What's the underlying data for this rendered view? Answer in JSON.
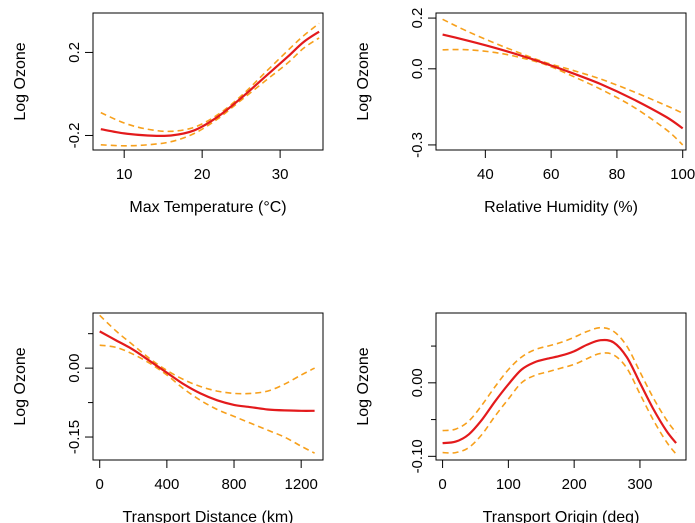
{
  "chart_data": [
    {
      "type": "line",
      "xlabel": "Max Temperature (°C)",
      "ylabel": "Log Ozone",
      "xlim": [
        6,
        35.5
      ],
      "ylim": [
        -0.27,
        0.39
      ],
      "xticks": [
        10,
        20,
        30
      ],
      "yticks": [
        -0.2,
        0.2
      ],
      "xtick_labels": [
        "10",
        "20",
        "30"
      ],
      "ytick_labels": [
        "-0.2",
        "0.2"
      ],
      "series": [
        {
          "role": "fit",
          "x": [
            7,
            10,
            13,
            16,
            19,
            22,
            25,
            28,
            31,
            33,
            35
          ],
          "y": [
            -0.17,
            -0.19,
            -0.2,
            -0.2,
            -0.175,
            -0.11,
            -0.02,
            0.08,
            0.18,
            0.25,
            0.3
          ]
        },
        {
          "role": "upper",
          "x": [
            7,
            10,
            13,
            16,
            19,
            22,
            25,
            28,
            31,
            33,
            35
          ],
          "y": [
            -0.09,
            -0.14,
            -0.17,
            -0.18,
            -0.16,
            -0.1,
            -0.01,
            0.1,
            0.21,
            0.28,
            0.34
          ]
        },
        {
          "role": "lower",
          "x": [
            7,
            10,
            13,
            16,
            19,
            22,
            25,
            28,
            31,
            33,
            35
          ],
          "y": [
            -0.245,
            -0.25,
            -0.245,
            -0.23,
            -0.19,
            -0.12,
            -0.03,
            0.06,
            0.15,
            0.22,
            0.27
          ]
        }
      ]
    },
    {
      "type": "line",
      "xlabel": "Relative Humidity (%)",
      "ylabel": "Log Ozone",
      "xlim": [
        25,
        101
      ],
      "ylim": [
        -0.32,
        0.22
      ],
      "xticks": [
        40,
        60,
        80,
        100
      ],
      "yticks": [
        -0.3,
        0.0,
        0.2
      ],
      "xtick_labels": [
        "40",
        "60",
        "80",
        "100"
      ],
      "ytick_labels": [
        "-0.3",
        "0.0",
        "0.2"
      ],
      "series": [
        {
          "role": "fit",
          "x": [
            27,
            35,
            45,
            55,
            60,
            65,
            75,
            85,
            95,
            100
          ],
          "y": [
            0.135,
            0.11,
            0.075,
            0.035,
            0.013,
            -0.01,
            -0.06,
            -0.12,
            -0.19,
            -0.235
          ]
        },
        {
          "role": "upper",
          "x": [
            27,
            35,
            45,
            55,
            60,
            65,
            75,
            85,
            95,
            100
          ],
          "y": [
            0.195,
            0.145,
            0.09,
            0.04,
            0.018,
            0.0,
            -0.04,
            -0.09,
            -0.145,
            -0.175
          ]
        },
        {
          "role": "lower",
          "x": [
            27,
            35,
            45,
            55,
            60,
            65,
            75,
            85,
            95,
            100
          ],
          "y": [
            0.075,
            0.075,
            0.06,
            0.03,
            0.008,
            -0.02,
            -0.08,
            -0.15,
            -0.24,
            -0.3
          ]
        }
      ]
    },
    {
      "type": "line",
      "xlabel": "Transport Distance (km)",
      "ylabel": "Log Ozone",
      "xlim": [
        -40,
        1330
      ],
      "ylim": [
        -0.2,
        0.12
      ],
      "xticks": [
        0,
        400,
        800,
        1200
      ],
      "yticks": [
        -0.15,
        0.0
      ],
      "yticks_minor": [
        -0.075,
        0.075
      ],
      "xtick_labels": [
        "0",
        "400",
        "800",
        "1200"
      ],
      "ytick_labels": [
        "-0.15",
        "0.00"
      ],
      "series": [
        {
          "role": "fit",
          "x": [
            0,
            100,
            200,
            300,
            400,
            500,
            600,
            700,
            800,
            900,
            1000,
            1100,
            1200,
            1280
          ],
          "y": [
            0.08,
            0.06,
            0.04,
            0.015,
            -0.01,
            -0.035,
            -0.055,
            -0.07,
            -0.08,
            -0.085,
            -0.09,
            -0.092,
            -0.093,
            -0.093
          ]
        },
        {
          "role": "upper",
          "x": [
            0,
            100,
            200,
            300,
            400,
            500,
            600,
            700,
            800,
            900,
            1000,
            1100,
            1200,
            1280
          ],
          "y": [
            0.115,
            0.08,
            0.05,
            0.02,
            -0.005,
            -0.025,
            -0.04,
            -0.05,
            -0.055,
            -0.055,
            -0.05,
            -0.035,
            -0.015,
            0.0
          ]
        },
        {
          "role": "lower",
          "x": [
            0,
            100,
            200,
            300,
            400,
            500,
            600,
            700,
            800,
            900,
            1000,
            1100,
            1200,
            1280
          ],
          "y": [
            0.05,
            0.045,
            0.03,
            0.01,
            -0.015,
            -0.045,
            -0.07,
            -0.09,
            -0.105,
            -0.12,
            -0.135,
            -0.15,
            -0.17,
            -0.185
          ]
        }
      ]
    },
    {
      "type": "line",
      "xlabel": "Transport Origin (deg)",
      "ylabel": "Log Ozone",
      "xlim": [
        -10,
        370
      ],
      "ylim": [
        -0.105,
        0.095
      ],
      "xticks": [
        0,
        100,
        200,
        300
      ],
      "yticks": [
        -0.1,
        0.0
      ],
      "yticks_minor": [
        -0.05,
        0.05
      ],
      "xtick_labels": [
        "0",
        "100",
        "200",
        "300"
      ],
      "ytick_labels": [
        "-0.10",
        "0.00"
      ],
      "series": [
        {
          "role": "fit",
          "x": [
            0,
            20,
            40,
            60,
            80,
            100,
            120,
            140,
            160,
            180,
            200,
            220,
            240,
            260,
            280,
            300,
            320,
            340,
            355
          ],
          "y": [
            -0.082,
            -0.08,
            -0.07,
            -0.05,
            -0.025,
            -0.002,
            0.018,
            0.028,
            0.033,
            0.037,
            0.043,
            0.052,
            0.058,
            0.055,
            0.035,
            0.0,
            -0.035,
            -0.065,
            -0.082
          ]
        },
        {
          "role": "upper",
          "x": [
            0,
            20,
            40,
            60,
            80,
            100,
            120,
            140,
            160,
            180,
            200,
            220,
            240,
            260,
            280,
            300,
            320,
            340,
            355
          ],
          "y": [
            -0.065,
            -0.063,
            -0.052,
            -0.03,
            -0.005,
            0.018,
            0.035,
            0.045,
            0.05,
            0.055,
            0.062,
            0.07,
            0.075,
            0.07,
            0.05,
            0.015,
            -0.02,
            -0.05,
            -0.068
          ]
        },
        {
          "role": "lower",
          "x": [
            0,
            20,
            40,
            60,
            80,
            100,
            120,
            140,
            160,
            180,
            200,
            220,
            240,
            260,
            280,
            300,
            320,
            340,
            355
          ],
          "y": [
            -0.095,
            -0.095,
            -0.088,
            -0.07,
            -0.045,
            -0.022,
            0.0,
            0.01,
            0.015,
            0.02,
            0.025,
            0.033,
            0.04,
            0.038,
            0.02,
            -0.015,
            -0.05,
            -0.08,
            -0.097
          ]
        }
      ]
    }
  ]
}
